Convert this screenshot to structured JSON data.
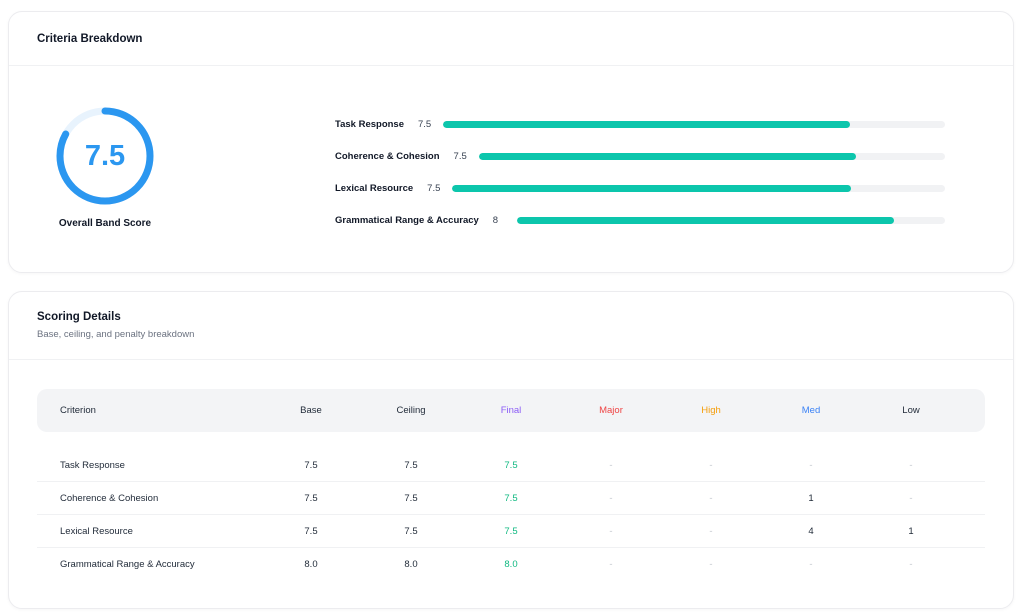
{
  "colors": {
    "ring": "#2b97f0",
    "ring_track": "#e8f3fd",
    "bar_fill": "#0cc6ac",
    "bar_track": "#f1f2f4",
    "final": "#10b981",
    "final_header": "#8b5cf6",
    "major_header": "#ef4444",
    "high_header": "#f59e0b",
    "med_header": "#3b82f6"
  },
  "criteria_card": {
    "title": "Criteria Breakdown",
    "overall": {
      "value": "7.5",
      "label": "Overall Band Score",
      "ring_fraction": 0.83
    },
    "bars": [
      {
        "name": "Task Response",
        "score": "7.5",
        "fill_fraction": 0.81
      },
      {
        "name": "Coherence & Cohesion",
        "score": "7.5",
        "fill_fraction": 0.81
      },
      {
        "name": "Lexical Resource",
        "score": "7.5",
        "fill_fraction": 0.81
      },
      {
        "name": "Grammatical Range & Accuracy",
        "score": "8",
        "fill_fraction": 0.88
      }
    ]
  },
  "scoring_card": {
    "title": "Scoring Details",
    "subtitle": "Base, ceiling, and penalty breakdown",
    "columns": [
      "Criterion",
      "Base",
      "Ceiling",
      "Final",
      "Major",
      "High",
      "Med",
      "Low"
    ],
    "rows": [
      {
        "criterion": "Task Response",
        "base": "7.5",
        "ceiling": "7.5",
        "final": "7.5",
        "major": "-",
        "high": "-",
        "med": "-",
        "low": "-"
      },
      {
        "criterion": "Coherence & Cohesion",
        "base": "7.5",
        "ceiling": "7.5",
        "final": "7.5",
        "major": "-",
        "high": "-",
        "med": "1",
        "low": "-"
      },
      {
        "criterion": "Lexical Resource",
        "base": "7.5",
        "ceiling": "7.5",
        "final": "7.5",
        "major": "-",
        "high": "-",
        "med": "4",
        "low": "1"
      },
      {
        "criterion": "Grammatical Range & Accuracy",
        "base": "8.0",
        "ceiling": "8.0",
        "final": "8.0",
        "major": "-",
        "high": "-",
        "med": "-",
        "low": "-"
      }
    ]
  }
}
